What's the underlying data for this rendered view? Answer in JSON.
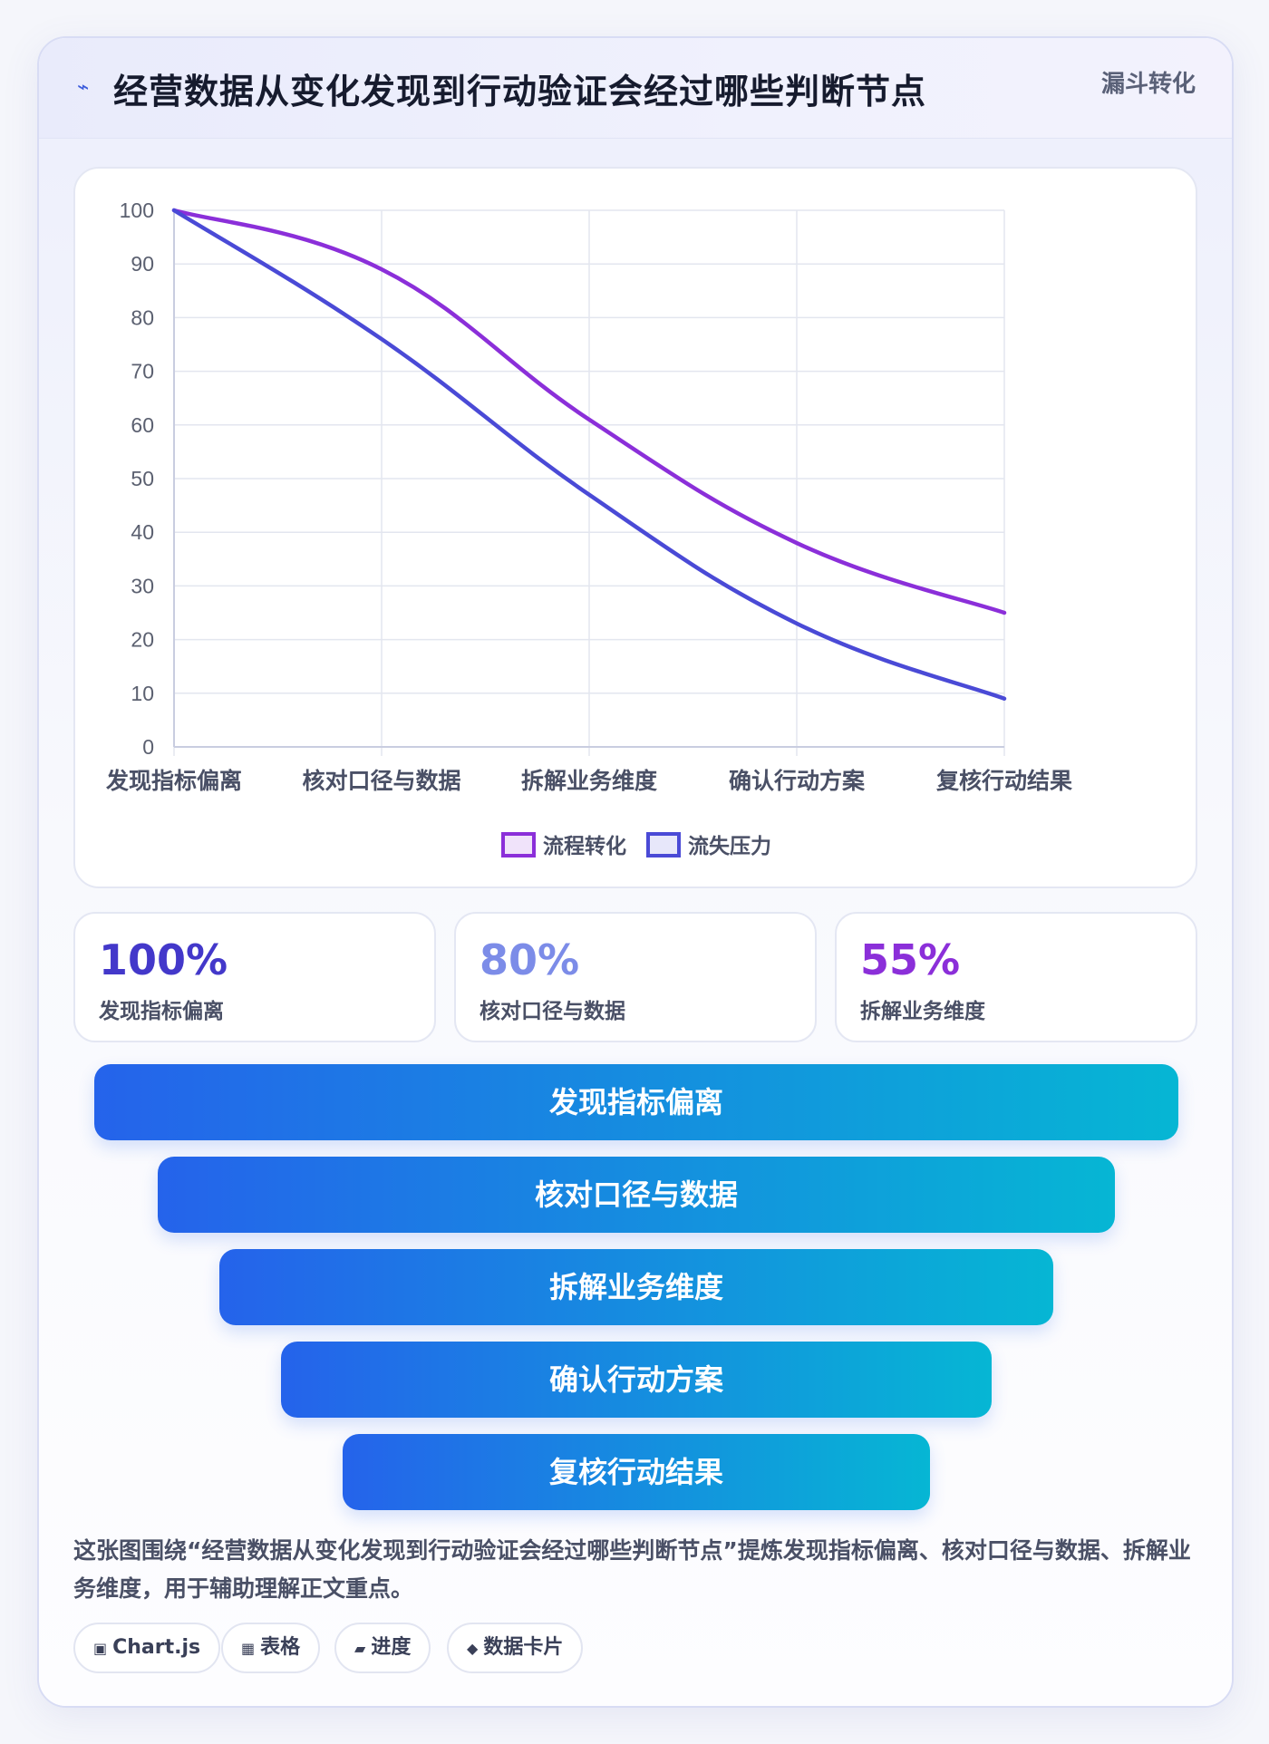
{
  "header": {
    "icon": "lightning-icon",
    "title": "经营数据从变化发现到行动验证会经过哪些判断节点",
    "tag": "漏斗转化"
  },
  "chart_data": {
    "type": "line",
    "categories": [
      "发现指标偏离",
      "核对口径与数据",
      "拆解业务维度",
      "确认行动方案",
      "复核行动结果"
    ],
    "series": [
      {
        "name": "流程转化",
        "values": [
          100,
          89,
          61,
          38,
          25
        ],
        "color": "#8b2fd9"
      },
      {
        "name": "流失压力",
        "values": [
          100,
          76,
          47,
          23,
          9
        ],
        "color": "#4a4ad6"
      }
    ],
    "ylim": [
      0,
      100
    ],
    "yticks": [
      0,
      10,
      20,
      30,
      40,
      50,
      60,
      70,
      80,
      90,
      100
    ],
    "grid": true,
    "legend": "bottom"
  },
  "stats": [
    {
      "value": "100%",
      "label": "发现指标偏离",
      "color": "#4338ca"
    },
    {
      "value": "80%",
      "label": "核对口径与数据",
      "color": "#7c8ce8"
    },
    {
      "value": "55%",
      "label": "拆解业务维度",
      "color": "#8b2fd9"
    }
  ],
  "funnel": [
    "发现指标偏离",
    "核对口径与数据",
    "拆解业务维度",
    "确认行动方案",
    "复核行动结果"
  ],
  "description": "这张图围绕“经营数据从变化发现到行动验证会经过哪些判断节点”提炼发现指标偏离、核对口径与数据、拆解业务维度，用于辅助理解正文重点。",
  "chips": [
    {
      "icon": "chart-icon",
      "glyph": "▣",
      "label": "Chart.js"
    },
    {
      "icon": "table-icon",
      "glyph": "▦",
      "label": "表格"
    },
    {
      "icon": "progress-icon",
      "glyph": "▰",
      "label": "进度"
    },
    {
      "icon": "card-icon",
      "glyph": "◆",
      "label": "数据卡片"
    }
  ]
}
